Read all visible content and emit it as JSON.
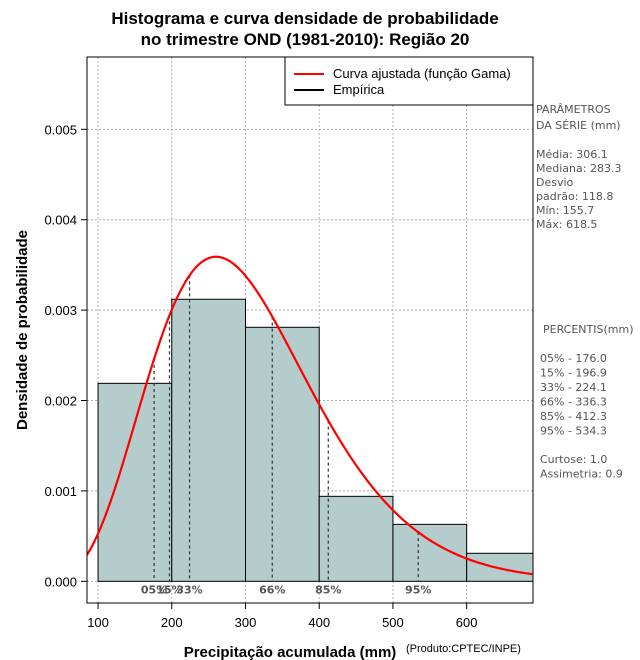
{
  "chart_data": {
    "type": "bar",
    "title_lines": [
      "Histograma e curva densidade de probabilidade",
      "no trimestre OND (1981-2010): Região 20"
    ],
    "xlabel": "Precipitação acumulada (mm)",
    "ylabel": "Densidade de probabilidade",
    "credit": "(Produto:CPTEC/INPE)",
    "xlim": [
      85,
      690
    ],
    "ylim": [
      -0.00024,
      0.0058
    ],
    "x_ticks": [
      100,
      200,
      300,
      400,
      500,
      600
    ],
    "y_ticks": [
      0.0,
      0.001,
      0.002,
      0.003,
      0.004,
      0.005
    ],
    "y_tick_labels": [
      "0.000",
      "0.001",
      "0.002",
      "0.003",
      "0.004",
      "0.005"
    ],
    "grid": true,
    "bins": [
      {
        "from": 100,
        "to": 200,
        "density": 0.00219
      },
      {
        "from": 200,
        "to": 300,
        "density": 0.00312
      },
      {
        "from": 300,
        "to": 400,
        "density": 0.00281
      },
      {
        "from": 400,
        "to": 500,
        "density": 0.00094
      },
      {
        "from": 500,
        "to": 600,
        "density": 0.00063
      },
      {
        "from": 600,
        "to": 700,
        "density": 0.00031
      }
    ],
    "bar_color": "#b5cccc",
    "curve_color": "#ff0000",
    "gamma_fit": {
      "mean": 306.1,
      "sd": 118.8
    },
    "legend": {
      "position": "top-right",
      "entries": [
        {
          "label": "Curva ajustada (função Gama)",
          "color": "#ff0000"
        },
        {
          "label": "Empírica",
          "color": "#000000"
        }
      ]
    },
    "percentile_markers": [
      {
        "label": "05%",
        "value": 176.0
      },
      {
        "label": "15%",
        "value": 196.9
      },
      {
        "label": "33%",
        "value": 224.1
      },
      {
        "label": "66%",
        "value": 336.3
      },
      {
        "label": "85%",
        "value": 412.3
      },
      {
        "label": "95%",
        "value": 534.3
      }
    ]
  },
  "side_panel": {
    "params_title": [
      "PARÂMETROS",
      " DA SÉRIE (mm)"
    ],
    "params_lines": [
      "Média:  306.1",
      "Mediana:  283.3",
      "Desvio",
      "padrão:  118.8",
      "Mín:  155.7",
      "Máx:  618.5"
    ],
    "percentis_title": "PERCENTIS(mm)",
    "percentis_lines": [
      "05% -   176.0",
      "15% -   196.9",
      "33% -   224.1",
      "66% -   336.3",
      "85% -   412.3",
      "95% -   534.3"
    ],
    "shape_lines": [
      "Curtose:  1.0",
      "Assimetria:  0.9"
    ]
  }
}
